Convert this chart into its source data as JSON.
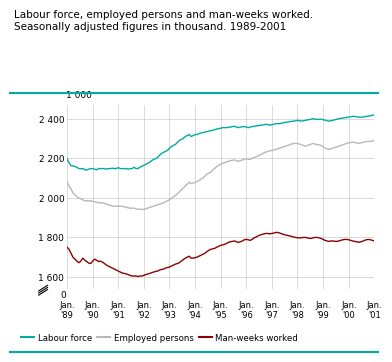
{
  "title_line1": "Labour force, employed persons and man-weeks worked.",
  "title_line2": "Seasonally adjusted figures in thousand. 1989-2001",
  "title_fontsize": 7.5,
  "ylabel": "1 000",
  "legend_labels": [
    "Labour force",
    "Employed persons",
    "Man-weeks worked"
  ],
  "legend_colors": [
    "#00aca0",
    "#b8b8b8",
    "#8b0000"
  ],
  "xtick_labels": [
    "Jan.\n'89",
    "Jan.\n'90",
    "Jan.\n'91",
    "Jan.\n'92",
    "Jan.\n'93",
    "Jan.\n'94",
    "Jan.\n'95",
    "Jan.\n'96",
    "Jan.\n'97",
    "Jan.\n'98",
    "Jan.\n'99",
    "Jan.\n'00",
    "Jan.\n'01"
  ],
  "ytick_vals_main": [
    1600,
    1800,
    2000,
    2200,
    2400
  ],
  "ytick_labels_main": [
    "1 600",
    "1 800",
    "2 000",
    "2 200",
    "2 400"
  ],
  "background": "#ffffff",
  "grid_color": "#cccccc",
  "labour_force": [
    2198,
    2178,
    2162,
    2162,
    2158,
    2155,
    2148,
    2148,
    2148,
    2143,
    2140,
    2145,
    2148,
    2148,
    2145,
    2142,
    2148,
    2148,
    2148,
    2148,
    2145,
    2148,
    2148,
    2150,
    2148,
    2148,
    2153,
    2148,
    2148,
    2148,
    2148,
    2145,
    2148,
    2148,
    2155,
    2148,
    2148,
    2155,
    2160,
    2165,
    2170,
    2175,
    2180,
    2188,
    2195,
    2198,
    2205,
    2215,
    2225,
    2230,
    2235,
    2240,
    2250,
    2260,
    2265,
    2270,
    2280,
    2290,
    2295,
    2300,
    2310,
    2315,
    2320,
    2310,
    2315,
    2320,
    2320,
    2325,
    2328,
    2330,
    2332,
    2335,
    2338,
    2340,
    2342,
    2345,
    2348,
    2350,
    2352,
    2355,
    2355,
    2355,
    2357,
    2358,
    2360,
    2362,
    2358,
    2355,
    2358,
    2360,
    2360,
    2358,
    2355,
    2358,
    2360,
    2362,
    2363,
    2365,
    2367,
    2368,
    2370,
    2372,
    2370,
    2368,
    2370,
    2372,
    2375,
    2375,
    2375,
    2378,
    2380,
    2382,
    2383,
    2385,
    2387,
    2388,
    2390,
    2392,
    2390,
    2388,
    2390,
    2392,
    2394,
    2396,
    2398,
    2400,
    2398,
    2396,
    2398,
    2398,
    2395,
    2393,
    2390,
    2388,
    2390,
    2392,
    2395,
    2398,
    2400,
    2402,
    2403,
    2405,
    2407,
    2408,
    2410,
    2412,
    2412,
    2410,
    2408,
    2408,
    2408,
    2410,
    2412,
    2413,
    2415,
    2418,
    2420
  ],
  "employed": [
    2080,
    2060,
    2045,
    2025,
    2015,
    2005,
    2000,
    1995,
    1990,
    1985,
    1985,
    1985,
    1985,
    1982,
    1980,
    1978,
    1975,
    1975,
    1975,
    1972,
    1968,
    1965,
    1962,
    1958,
    1958,
    1958,
    1958,
    1958,
    1958,
    1955,
    1952,
    1950,
    1948,
    1948,
    1948,
    1945,
    1942,
    1942,
    1942,
    1942,
    1945,
    1948,
    1952,
    1955,
    1958,
    1962,
    1965,
    1968,
    1972,
    1975,
    1980,
    1985,
    1990,
    1998,
    2005,
    2012,
    2020,
    2030,
    2040,
    2050,
    2060,
    2070,
    2080,
    2072,
    2075,
    2078,
    2082,
    2088,
    2095,
    2100,
    2110,
    2120,
    2125,
    2130,
    2140,
    2150,
    2158,
    2165,
    2170,
    2175,
    2178,
    2182,
    2185,
    2188,
    2190,
    2192,
    2188,
    2185,
    2188,
    2192,
    2195,
    2198,
    2195,
    2195,
    2200,
    2205,
    2208,
    2212,
    2218,
    2222,
    2228,
    2232,
    2235,
    2238,
    2240,
    2242,
    2245,
    2248,
    2252,
    2255,
    2258,
    2262,
    2265,
    2268,
    2272,
    2275,
    2275,
    2275,
    2272,
    2268,
    2265,
    2262,
    2265,
    2268,
    2272,
    2275,
    2272,
    2268,
    2268,
    2265,
    2258,
    2252,
    2248,
    2245,
    2248,
    2252,
    2255,
    2258,
    2262,
    2265,
    2268,
    2272,
    2275,
    2278,
    2280,
    2282,
    2280,
    2278,
    2275,
    2278,
    2280,
    2282,
    2285,
    2285,
    2285,
    2288,
    2290
  ],
  "manweeks": [
    1750,
    1740,
    1720,
    1700,
    1690,
    1680,
    1672,
    1680,
    1695,
    1685,
    1678,
    1670,
    1668,
    1680,
    1690,
    1685,
    1678,
    1680,
    1675,
    1668,
    1660,
    1655,
    1650,
    1645,
    1640,
    1635,
    1630,
    1625,
    1620,
    1618,
    1615,
    1612,
    1608,
    1605,
    1605,
    1605,
    1602,
    1605,
    1605,
    1608,
    1612,
    1615,
    1618,
    1622,
    1625,
    1628,
    1630,
    1635,
    1638,
    1640,
    1645,
    1648,
    1650,
    1655,
    1660,
    1665,
    1668,
    1672,
    1680,
    1688,
    1695,
    1700,
    1705,
    1695,
    1695,
    1698,
    1700,
    1705,
    1710,
    1715,
    1720,
    1728,
    1735,
    1740,
    1742,
    1745,
    1750,
    1755,
    1760,
    1762,
    1765,
    1770,
    1775,
    1778,
    1780,
    1782,
    1778,
    1775,
    1778,
    1782,
    1788,
    1790,
    1788,
    1785,
    1790,
    1798,
    1802,
    1808,
    1812,
    1815,
    1818,
    1820,
    1820,
    1818,
    1820,
    1822,
    1825,
    1825,
    1822,
    1818,
    1815,
    1812,
    1810,
    1808,
    1805,
    1802,
    1800,
    1798,
    1798,
    1798,
    1800,
    1800,
    1798,
    1795,
    1795,
    1798,
    1800,
    1800,
    1798,
    1795,
    1790,
    1785,
    1782,
    1780,
    1782,
    1782,
    1780,
    1780,
    1782,
    1785,
    1788,
    1790,
    1790,
    1788,
    1785,
    1782,
    1780,
    1778,
    1775,
    1778,
    1780,
    1785,
    1788,
    1790,
    1788,
    1785,
    1782
  ]
}
